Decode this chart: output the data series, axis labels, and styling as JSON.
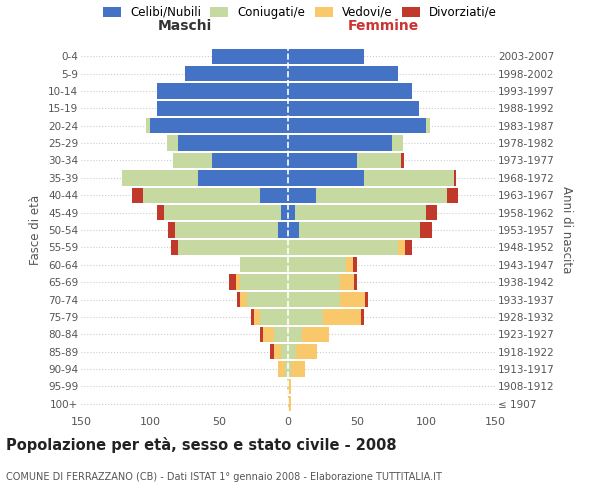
{
  "age_groups": [
    "100+",
    "95-99",
    "90-94",
    "85-89",
    "80-84",
    "75-79",
    "70-74",
    "65-69",
    "60-64",
    "55-59",
    "50-54",
    "45-49",
    "40-44",
    "35-39",
    "30-34",
    "25-29",
    "20-24",
    "15-19",
    "10-14",
    "5-9",
    "0-4"
  ],
  "birth_years": [
    "≤ 1907",
    "1908-1912",
    "1913-1917",
    "1918-1922",
    "1923-1927",
    "1928-1932",
    "1933-1937",
    "1938-1942",
    "1943-1947",
    "1948-1952",
    "1953-1957",
    "1958-1962",
    "1963-1967",
    "1968-1972",
    "1973-1977",
    "1978-1982",
    "1983-1987",
    "1988-1992",
    "1993-1997",
    "1998-2002",
    "2003-2007"
  ],
  "maschi_celibi": [
    0,
    0,
    0,
    0,
    0,
    0,
    0,
    0,
    0,
    0,
    7,
    5,
    20,
    65,
    55,
    80,
    100,
    95,
    95,
    75,
    55
  ],
  "maschi_coniugati": [
    0,
    1,
    2,
    5,
    10,
    20,
    30,
    35,
    35,
    80,
    75,
    85,
    85,
    55,
    28,
    8,
    3,
    0,
    0,
    0,
    0
  ],
  "maschi_vedovi": [
    0,
    0,
    5,
    5,
    8,
    5,
    5,
    3,
    0,
    0,
    0,
    0,
    0,
    0,
    0,
    0,
    0,
    0,
    0,
    0,
    0
  ],
  "maschi_divorziati": [
    0,
    0,
    0,
    3,
    2,
    2,
    2,
    5,
    0,
    5,
    5,
    5,
    8,
    0,
    0,
    0,
    0,
    0,
    0,
    0,
    0
  ],
  "femmine_celibi": [
    0,
    0,
    0,
    0,
    0,
    0,
    0,
    0,
    0,
    0,
    8,
    5,
    20,
    55,
    50,
    75,
    100,
    95,
    90,
    80,
    55
  ],
  "femmine_coniugati": [
    0,
    0,
    2,
    6,
    10,
    25,
    38,
    38,
    42,
    80,
    88,
    95,
    95,
    65,
    32,
    8,
    3,
    0,
    0,
    0,
    0
  ],
  "femmine_vedovi": [
    2,
    2,
    10,
    15,
    20,
    28,
    18,
    10,
    5,
    5,
    0,
    0,
    0,
    0,
    0,
    0,
    0,
    0,
    0,
    0,
    0
  ],
  "femmine_divorziati": [
    0,
    0,
    0,
    0,
    0,
    2,
    2,
    2,
    3,
    5,
    8,
    8,
    8,
    2,
    2,
    0,
    0,
    0,
    0,
    0,
    0
  ],
  "colors": {
    "celibi": "#4472C4",
    "coniugati": "#C5D9A0",
    "vedovi": "#F9C86A",
    "divorziati": "#C0392B"
  },
  "title": "Popolazione per età, sesso e stato civile - 2008",
  "subtitle": "COMUNE DI FERRAZZANO (CB) - Dati ISTAT 1° gennaio 2008 - Elaborazione TUTTITALIA.IT",
  "ylabel_left": "Fasce di età",
  "ylabel_right": "Anni di nascita",
  "xlabel_left": "Maschi",
  "xlabel_right": "Femmine",
  "xlim": 150,
  "background_color": "#ffffff",
  "grid_color": "#cccccc"
}
